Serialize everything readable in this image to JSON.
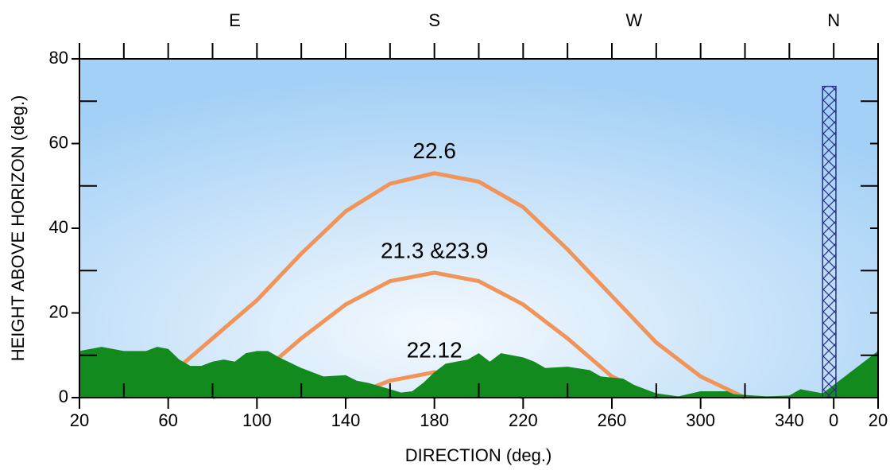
{
  "chart_data": {
    "type": "line",
    "x_label": "DIRECTION (deg.)",
    "y_label": "HEIGHT ABOVE  HORIZON (deg.)",
    "xlim": [
      20,
      380
    ],
    "ylim": [
      0,
      80
    ],
    "xticks": [
      20,
      60,
      100,
      140,
      180,
      220,
      260,
      300,
      340,
      {
        "value": 360,
        "label": "0"
      },
      {
        "value": 380,
        "label": "20"
      }
    ],
    "xminor": [
      40,
      80,
      120,
      160,
      200,
      240,
      280,
      320
    ],
    "yticks": [
      0,
      20,
      40,
      60,
      80
    ],
    "yminor": [
      10,
      30,
      50,
      70
    ],
    "top_labels": [
      {
        "value": 90,
        "label": "E"
      },
      {
        "value": 180,
        "label": "S"
      },
      {
        "value": 270,
        "label": "W"
      },
      {
        "value": 360,
        "label": "N"
      }
    ],
    "series": [
      {
        "name": "22.6",
        "color": "#f0945a",
        "x": [
          60,
          80,
          100,
          120,
          140,
          160,
          180,
          200,
          220,
          240,
          260,
          280,
          300,
          320
        ],
        "values": [
          5,
          14,
          23,
          34,
          44,
          50.5,
          53,
          51,
          45,
          35,
          24,
          13,
          5,
          0
        ]
      },
      {
        "name": "21.3 &23.9",
        "color": "#f0945a",
        "x": [
          80,
          100,
          120,
          140,
          160,
          180,
          200,
          220,
          240,
          260,
          280
        ],
        "values": [
          0,
          5,
          14,
          22,
          27.5,
          29.5,
          27.5,
          22,
          14,
          5,
          0
        ]
      },
      {
        "name": "22.12",
        "color": "#f0945a",
        "x": [
          140,
          160,
          180,
          200,
          220
        ],
        "values": [
          0,
          4,
          6,
          4,
          0
        ]
      }
    ],
    "terrain": {
      "color": "#128a1e",
      "x": [
        20,
        30,
        35,
        40,
        50,
        55,
        60,
        65,
        70,
        75,
        80,
        85,
        90,
        95,
        100,
        105,
        110,
        120,
        130,
        140,
        145,
        150,
        160,
        165,
        170,
        175,
        180,
        185,
        195,
        200,
        205,
        210,
        220,
        225,
        230,
        240,
        250,
        255,
        265,
        270,
        280,
        290,
        300,
        312,
        315,
        330,
        340,
        345,
        355,
        365,
        380
      ],
      "values": [
        11,
        12,
        11.5,
        11,
        11,
        12,
        11.5,
        9,
        7.5,
        7.5,
        8.5,
        9,
        8.5,
        10.5,
        11,
        11,
        9.5,
        7,
        5,
        5.3,
        4,
        3.5,
        2,
        1.2,
        1.5,
        3.5,
        6,
        8,
        9,
        10.5,
        8.5,
        10.5,
        9.5,
        8.5,
        7,
        7.3,
        6.5,
        5,
        4.5,
        3,
        1,
        0.3,
        1.5,
        1.5,
        0.8,
        0.3,
        0.5,
        2,
        1,
        5,
        11
      ]
    },
    "obstruction": {
      "xrange": [
        355,
        361
      ],
      "height": 73.5,
      "color": "#2a2f8a"
    }
  }
}
